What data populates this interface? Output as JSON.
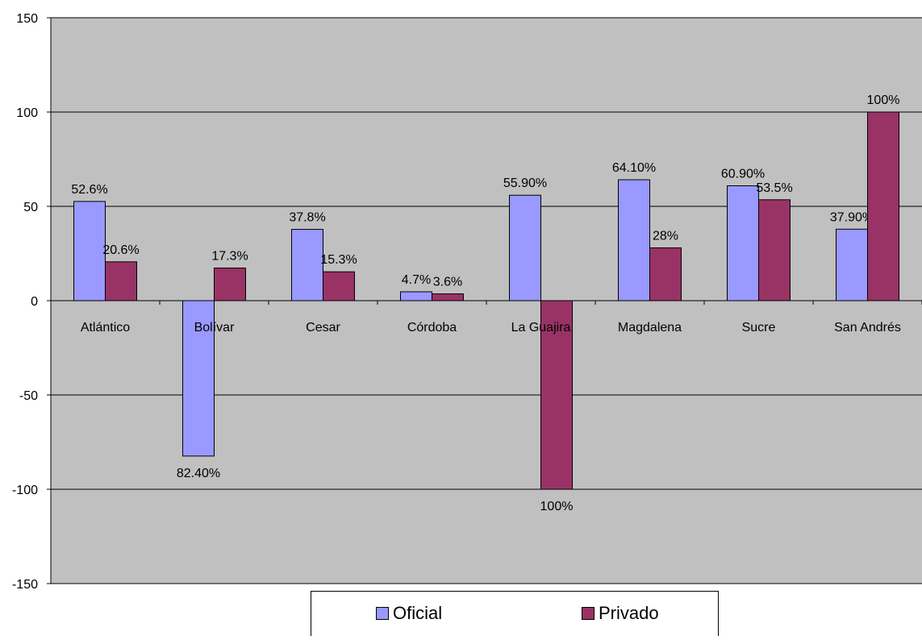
{
  "chart_data": {
    "type": "bar",
    "categories": [
      "Atlántico",
      "Bolívar",
      "Cesar",
      "Córdoba",
      "La Guajira",
      "Magdalena",
      "Sucre",
      "San Andrés"
    ],
    "series": [
      {
        "name": "Oficial",
        "color": "#9999ff",
        "values": [
          52.6,
          -82.4,
          37.8,
          4.7,
          55.9,
          64.1,
          60.9,
          37.9
        ],
        "labels": [
          "52.6%",
          "82.40%",
          "37.8%",
          "4.7%",
          "55.90%",
          "64.10%",
          "60.90%",
          "37.90%"
        ]
      },
      {
        "name": "Privado",
        "color": "#993366",
        "values": [
          20.6,
          17.3,
          15.3,
          3.6,
          -100,
          28,
          53.5,
          100
        ],
        "labels": [
          "20.6%",
          "17.3%",
          "15.3%",
          "3.6%",
          "100%",
          "28%",
          "53.5%",
          "100%"
        ]
      }
    ],
    "ylim": [
      -150,
      150
    ],
    "yticks": [
      "150",
      "100",
      "50",
      "0",
      "-50",
      "-100",
      "-150"
    ],
    "grid": true,
    "plot_background": "#c0c0c0",
    "legend_position": "bottom",
    "title": "",
    "xlabel": "",
    "ylabel": ""
  }
}
